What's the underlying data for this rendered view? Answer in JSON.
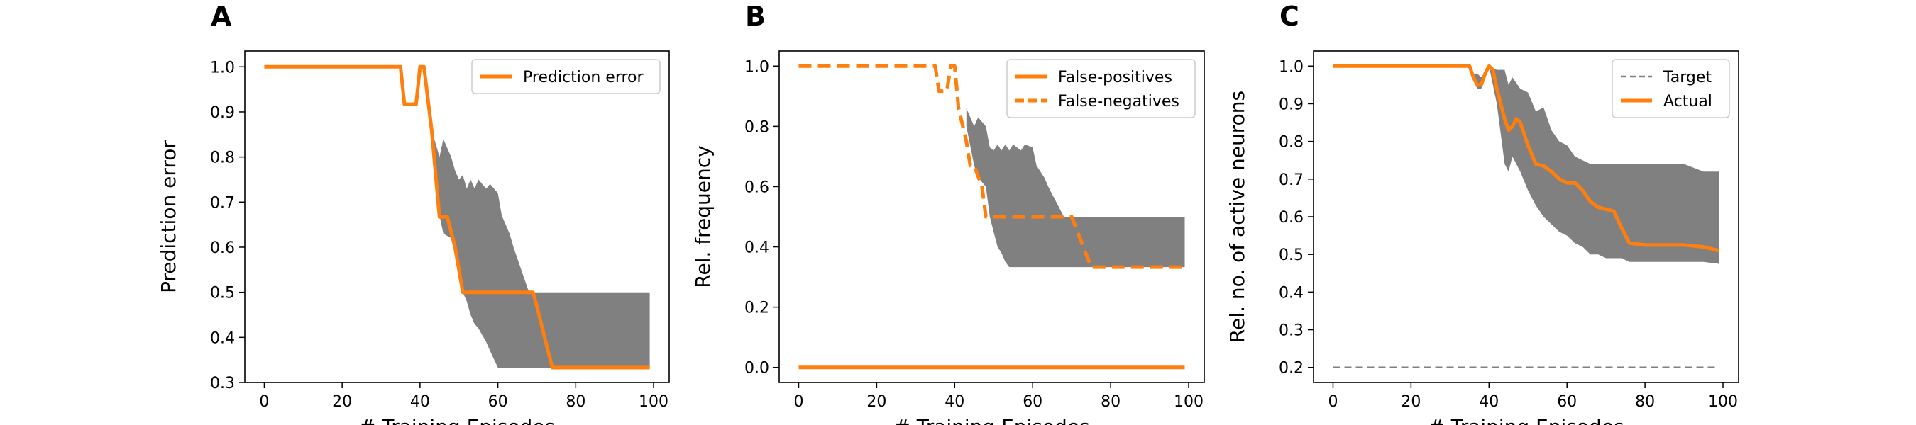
{
  "colors": {
    "accent": "#ff7f0e",
    "band": "#808080",
    "target": "#808080",
    "axis": "#000000"
  },
  "chart_data": [
    {
      "panel": "A",
      "type": "line",
      "xlabel": "# Training Episodes",
      "ylabel": "Prediction error",
      "xlim": [
        -5,
        104
      ],
      "ylim": [
        0.3,
        1.035
      ],
      "xticks": [
        0,
        20,
        40,
        60,
        80,
        100
      ],
      "yticks": [
        0.3,
        0.4,
        0.5,
        0.6,
        0.7,
        0.8,
        0.9,
        1.0
      ],
      "legend_loc": "top-right",
      "series": [
        {
          "name": "Prediction error",
          "style": "solid",
          "x": [
            0,
            35,
            36,
            39,
            40,
            41,
            43,
            45,
            47,
            49,
            51,
            53,
            55,
            60,
            65,
            69,
            70,
            72,
            74,
            80,
            90,
            99
          ],
          "y": [
            1.0,
            1.0,
            0.917,
            0.917,
            1.0,
            1.0,
            0.86,
            0.667,
            0.667,
            0.6,
            0.5,
            0.5,
            0.5,
            0.5,
            0.5,
            0.5,
            0.47,
            0.4,
            0.333,
            0.333,
            0.333,
            0.333
          ]
        }
      ],
      "bands": [
        {
          "x": [
            43,
            45,
            46,
            48,
            49,
            50,
            51,
            52,
            53,
            54,
            55,
            57,
            58,
            60,
            61,
            63,
            64,
            66,
            68,
            70,
            72,
            73,
            74,
            80,
            90,
            99
          ],
          "lower": [
            0.83,
            0.67,
            0.63,
            0.62,
            0.58,
            0.53,
            0.5,
            0.48,
            0.45,
            0.43,
            0.42,
            0.39,
            0.37,
            0.333,
            0.333,
            0.333,
            0.333,
            0.333,
            0.333,
            0.333,
            0.333,
            0.333,
            0.333,
            0.333,
            0.333,
            0.333
          ],
          "upper": [
            0.86,
            0.8,
            0.84,
            0.8,
            0.77,
            0.75,
            0.76,
            0.73,
            0.75,
            0.73,
            0.75,
            0.73,
            0.74,
            0.72,
            0.67,
            0.63,
            0.6,
            0.55,
            0.5,
            0.5,
            0.5,
            0.5,
            0.5,
            0.5,
            0.5,
            0.5
          ]
        }
      ]
    },
    {
      "panel": "B",
      "type": "line",
      "xlabel": "# Training Episodes",
      "ylabel": "Rel. frequency",
      "xlim": [
        -5,
        104
      ],
      "ylim": [
        -0.05,
        1.05
      ],
      "xticks": [
        0,
        20,
        40,
        60,
        80,
        100
      ],
      "yticks": [
        0.0,
        0.2,
        0.4,
        0.6,
        0.8,
        1.0
      ],
      "legend_loc": "top-right",
      "series": [
        {
          "name": "False-positives",
          "style": "solid",
          "x": [
            0,
            99
          ],
          "y": [
            0.0,
            0.0
          ]
        },
        {
          "name": "False-negatives",
          "style": "dashed",
          "x": [
            0,
            35,
            36,
            38,
            39,
            40,
            41,
            43,
            44,
            45,
            47,
            48,
            50,
            55,
            60,
            65,
            70,
            73,
            75,
            80,
            90,
            99
          ],
          "y": [
            1.0,
            1.0,
            0.917,
            0.917,
            1.0,
            1.0,
            0.86,
            0.75,
            0.67,
            0.67,
            0.6,
            0.5,
            0.5,
            0.5,
            0.5,
            0.5,
            0.5,
            0.4,
            0.333,
            0.333,
            0.333,
            0.333
          ]
        }
      ],
      "bands": [
        {
          "x": [
            43,
            45,
            46,
            48,
            49,
            50,
            51,
            52,
            53,
            54,
            55,
            57,
            58,
            60,
            61,
            63,
            64,
            66,
            68,
            70,
            72,
            73,
            74,
            80,
            90,
            99
          ],
          "lower": [
            0.8,
            0.67,
            0.63,
            0.6,
            0.5,
            0.45,
            0.4,
            0.38,
            0.35,
            0.333,
            0.333,
            0.333,
            0.333,
            0.333,
            0.333,
            0.333,
            0.333,
            0.333,
            0.333,
            0.333,
            0.333,
            0.333,
            0.333,
            0.333,
            0.333,
            0.333
          ],
          "upper": [
            0.86,
            0.8,
            0.83,
            0.8,
            0.73,
            0.72,
            0.74,
            0.72,
            0.74,
            0.72,
            0.74,
            0.72,
            0.74,
            0.73,
            0.67,
            0.63,
            0.6,
            0.55,
            0.5,
            0.5,
            0.5,
            0.5,
            0.5,
            0.5,
            0.5,
            0.5
          ]
        }
      ]
    },
    {
      "panel": "C",
      "type": "line",
      "xlabel": "# Training Episodes",
      "ylabel": "Rel. no. of active neurons",
      "xlim": [
        -5,
        104
      ],
      "ylim": [
        0.16,
        1.04
      ],
      "xticks": [
        0,
        20,
        40,
        60,
        80,
        100
      ],
      "yticks": [
        0.2,
        0.3,
        0.4,
        0.5,
        0.6,
        0.7,
        0.8,
        0.9,
        1.0
      ],
      "legend_loc": "top-right",
      "series": [
        {
          "name": "Target",
          "style": "dashed-thin",
          "x": [
            0,
            99
          ],
          "y": [
            0.2,
            0.2
          ]
        },
        {
          "name": "Actual",
          "style": "solid",
          "x": [
            0,
            35,
            36,
            37,
            38,
            39,
            40,
            41,
            42,
            43,
            44,
            45,
            46,
            47,
            48,
            50,
            52,
            54,
            56,
            58,
            60,
            62,
            64,
            66,
            68,
            70,
            72,
            74,
            76,
            80,
            90,
            95,
            99
          ],
          "y": [
            1.0,
            1.0,
            0.97,
            0.95,
            0.95,
            0.98,
            1.0,
            0.99,
            0.94,
            0.9,
            0.86,
            0.83,
            0.84,
            0.86,
            0.85,
            0.79,
            0.74,
            0.735,
            0.72,
            0.7,
            0.69,
            0.69,
            0.67,
            0.64,
            0.625,
            0.62,
            0.615,
            0.57,
            0.53,
            0.525,
            0.525,
            0.52,
            0.51
          ]
        }
      ],
      "bands": [
        {
          "x": [
            35,
            36,
            37,
            38,
            40,
            42,
            44,
            45,
            46,
            48,
            50,
            52,
            54,
            56,
            58,
            60,
            62,
            64,
            66,
            68,
            70,
            72,
            74,
            76,
            80,
            85,
            90,
            95,
            99
          ],
          "lower": [
            1.0,
            0.96,
            0.94,
            0.94,
            1.0,
            0.9,
            0.74,
            0.72,
            0.76,
            0.72,
            0.67,
            0.63,
            0.6,
            0.58,
            0.56,
            0.55,
            0.53,
            0.52,
            0.5,
            0.5,
            0.49,
            0.49,
            0.49,
            0.48,
            0.48,
            0.48,
            0.48,
            0.48,
            0.475
          ],
          "upper": [
            1.0,
            0.98,
            0.98,
            0.97,
            1.0,
            0.99,
            0.99,
            0.95,
            0.97,
            0.94,
            0.93,
            0.88,
            0.89,
            0.83,
            0.8,
            0.79,
            0.76,
            0.75,
            0.74,
            0.74,
            0.74,
            0.74,
            0.74,
            0.74,
            0.74,
            0.74,
            0.74,
            0.72,
            0.72
          ]
        }
      ]
    }
  ]
}
